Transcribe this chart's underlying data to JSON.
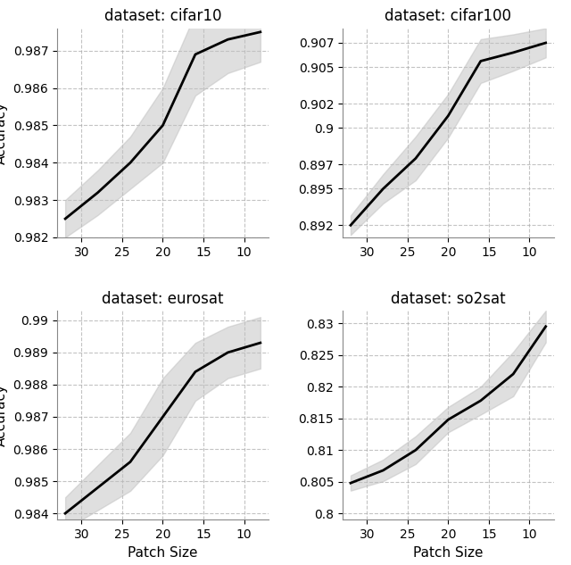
{
  "datasets": [
    "cifar10",
    "cifar100",
    "eurosat",
    "so2sat"
  ],
  "patch_sizes": [
    32,
    28,
    24,
    20,
    16,
    12,
    8
  ],
  "x_ticks": [
    30,
    25,
    20,
    15,
    10
  ],
  "cifar10": {
    "mean": [
      0.9825,
      0.9832,
      0.984,
      0.985,
      0.9869,
      0.9873,
      0.9875
    ],
    "upper": [
      0.983,
      0.9838,
      0.9847,
      0.986,
      0.988,
      0.9882,
      0.9883
    ],
    "lower": [
      0.982,
      0.9826,
      0.9833,
      0.984,
      0.9858,
      0.9864,
      0.9867
    ],
    "ylim": [
      0.982,
      0.9876
    ],
    "yticks": [
      0.982,
      0.983,
      0.984,
      0.985,
      0.986,
      0.987
    ],
    "ylabel": "Accuracy"
  },
  "cifar100": {
    "mean": [
      0.892,
      0.895,
      0.8975,
      0.901,
      0.9055,
      0.9062,
      0.907
    ],
    "upper": [
      0.8928,
      0.8962,
      0.8993,
      0.9028,
      0.9073,
      0.9077,
      0.9082
    ],
    "lower": [
      0.8912,
      0.8938,
      0.8957,
      0.8992,
      0.9037,
      0.9047,
      0.9058
    ],
    "ylim": [
      0.891,
      0.9082
    ],
    "yticks": [
      0.892,
      0.895,
      0.897,
      0.9,
      0.902,
      0.905,
      0.907
    ],
    "ylabel": ""
  },
  "eurosat": {
    "mean": [
      0.984,
      0.9848,
      0.9856,
      0.987,
      0.9884,
      0.989,
      0.9893
    ],
    "upper": [
      0.9845,
      0.9855,
      0.9865,
      0.9882,
      0.9893,
      0.9898,
      0.9901
    ],
    "lower": [
      0.9835,
      0.9841,
      0.9847,
      0.9858,
      0.9875,
      0.9882,
      0.9885
    ],
    "ylim": [
      0.9838,
      0.9903
    ],
    "yticks": [
      0.984,
      0.985,
      0.986,
      0.987,
      0.988,
      0.989,
      0.99
    ],
    "ylabel": "Accuracy"
  },
  "so2sat": {
    "mean": [
      0.8048,
      0.8068,
      0.81,
      0.8148,
      0.8178,
      0.822,
      0.8295
    ],
    "upper": [
      0.806,
      0.8085,
      0.8122,
      0.8168,
      0.82,
      0.8255,
      0.832
    ],
    "lower": [
      0.8036,
      0.8051,
      0.8078,
      0.8128,
      0.8156,
      0.8185,
      0.827
    ],
    "ylim": [
      0.799,
      0.832
    ],
    "yticks": [
      0.8,
      0.805,
      0.81,
      0.815,
      0.82,
      0.825,
      0.83
    ],
    "ylabel": ""
  },
  "line_color": "#000000",
  "fill_color": "#c0c0c0",
  "fill_alpha": 0.5,
  "grid_color": "#aaaaaa",
  "grid_style": "--",
  "background_color": "#ffffff",
  "title_fontsize": 12,
  "label_fontsize": 11,
  "tick_fontsize": 10,
  "xlabel": "Patch Size",
  "line_width": 2.0
}
